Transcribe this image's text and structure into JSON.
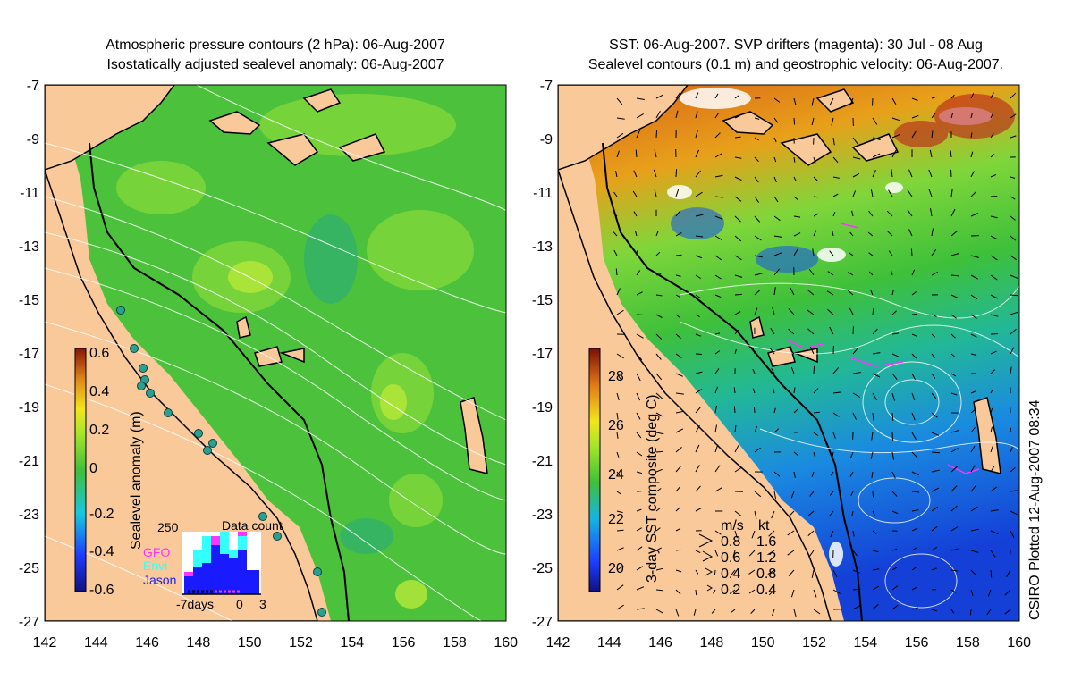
{
  "left_panel": {
    "title_line1": "Atmospheric pressure contours (2 hPa): 06-Aug-2007",
    "title_line2": "Isostatically adjusted sealevel anomaly: 06-Aug-2007",
    "colorbar_label": "Sealevel anomaly (m)",
    "colorbar_ticks": [
      "0.6",
      "0.4",
      "0.2",
      "0",
      "-0.2",
      "-0.4",
      "-0.6"
    ],
    "data_count": {
      "title": "Data count",
      "max_label": "250",
      "legend": [
        "GFO",
        "Envi",
        "Jason"
      ],
      "x_ticks": [
        "-7days",
        "0",
        "3"
      ],
      "colors": {
        "GFO": "#ff33ff",
        "Envi": "#33ffff",
        "Jason": "#1a1aff"
      }
    }
  },
  "right_panel": {
    "title_line1": "SST: 06-Aug-2007. SVP drifters (magenta): 30 Jul - 08 Aug",
    "title_line2": "Sealevel contours (0.1 m) and geostrophic velocity: 06-Aug-2007.",
    "colorbar_label": "3-day SST composite (deg C)",
    "colorbar_ticks": [
      "28",
      "26",
      "24",
      "22",
      "20"
    ],
    "velocity_legend": {
      "header_ms": "m/s",
      "header_kt": "kt",
      "rows": [
        {
          "ms": "0.8",
          "kt": "1.6"
        },
        {
          "ms": "0.6",
          "kt": "1.2"
        },
        {
          "ms": "0.4",
          "kt": "0.8"
        },
        {
          "ms": "0.2",
          "kt": "0.4"
        }
      ]
    }
  },
  "axes": {
    "y_ticks": [
      "-7",
      "-9",
      "-11",
      "-13",
      "-15",
      "-17",
      "-19",
      "-21",
      "-23",
      "-25",
      "-27"
    ],
    "x_ticks": [
      "142",
      "144",
      "146",
      "148",
      "150",
      "152",
      "154",
      "156",
      "158",
      "160"
    ]
  },
  "credit": "CSIRO Plotted 12-Aug-2007 08:34",
  "colors": {
    "land": "#f9c99a",
    "sea_green": "#4cc23c",
    "sea_light": "#7fd63a",
    "sst_warm": "#d9661a",
    "sst_cool": "#1550e6"
  }
}
